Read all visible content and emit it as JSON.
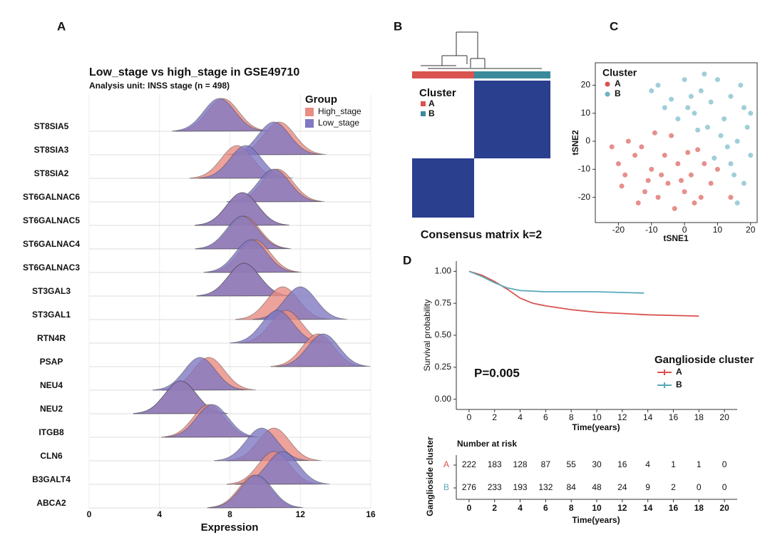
{
  "chart_data": [
    {
      "type": "ridgeline",
      "panel": "A",
      "title": "Low_stage vs high_stage in GSE49710",
      "subtitle": "Analysis unit: INSS stage (n = 498)",
      "x_label": "Expression",
      "legend_title": "Group",
      "xlim": [
        0,
        16
      ],
      "xticks": [
        0,
        4,
        8,
        12,
        16
      ],
      "grid": true,
      "categories": [
        "ST8SIA5",
        "ST8SIA3",
        "ST8SIA2",
        "ST6GALNAC6",
        "ST6GALNAC5",
        "ST6GALNAC4",
        "ST6GALNAC3",
        "ST3GAL3",
        "ST3GAL1",
        "RTN4R",
        "PSAP",
        "NEU4",
        "NEU2",
        "ITGB8",
        "CLN6",
        "B3GALT4",
        "ABCA2"
      ],
      "series": [
        {
          "name": "High_stage",
          "color": "#e98c82",
          "values": [
            7.6,
            10.8,
            8.4,
            10.7,
            8.7,
            8.8,
            9.4,
            8.8,
            11.0,
            11.2,
            13.0,
            6.8,
            5.2,
            6.8,
            10.5,
            10.5,
            9.4
          ]
        },
        {
          "name": "Low_stage",
          "color": "#7f78c2",
          "values": [
            7.4,
            10.5,
            8.9,
            10.5,
            8.7,
            8.7,
            9.2,
            8.8,
            12.0,
            10.7,
            13.3,
            6.3,
            5.2,
            7.0,
            9.8,
            11.0,
            9.5
          ]
        }
      ]
    },
    {
      "type": "heatmap",
      "panel": "B",
      "title": "Consensus matrix k=2",
      "legend_title": "Cluster",
      "values": [
        [
          0,
          1
        ],
        [
          1,
          0
        ]
      ],
      "low_color": "#ffffff",
      "high_color": "#2b3f8f",
      "clusters": [
        {
          "name": "A",
          "color": "#d9534f"
        },
        {
          "name": "B",
          "color": "#3a8a9c"
        }
      ]
    },
    {
      "type": "scatter",
      "panel": "C",
      "x_label": "tSNE1",
      "y_label": "tSNE2",
      "legend_title": "Cluster",
      "xlim": [
        -27,
        22
      ],
      "ylim": [
        -29,
        28
      ],
      "xticks": [
        -20,
        -10,
        0,
        10,
        20
      ],
      "yticks": [
        -20,
        -10,
        0,
        10,
        20
      ],
      "series": [
        {
          "name": "A",
          "color": "#d9534f",
          "x": [
            -22,
            -20,
            -18,
            -15,
            -12,
            -10,
            -8,
            -6,
            -5,
            -3,
            -2,
            0,
            2,
            4,
            5,
            -14,
            -17,
            -9,
            -4,
            1,
            6,
            8,
            -11,
            -19,
            -7,
            3,
            -13,
            10,
            14,
            -1
          ],
          "values": [
            -2,
            -8,
            -12,
            -5,
            -18,
            -10,
            -20,
            -5,
            -15,
            -24,
            -8,
            -18,
            -12,
            -3,
            -20,
            -22,
            0,
            3,
            2,
            -4,
            -8,
            -15,
            -14,
            -16,
            -12,
            -22,
            -2,
            -10,
            -20,
            -14
          ]
        },
        {
          "name": "B",
          "color": "#6db3c4",
          "x": [
            -8,
            -4,
            0,
            3,
            5,
            7,
            8,
            10,
            12,
            14,
            16,
            18,
            20,
            19,
            15,
            13,
            9,
            11,
            6,
            2,
            -2,
            -6,
            17,
            20,
            18,
            4,
            -10,
            1,
            14,
            16
          ],
          "values": [
            20,
            15,
            22,
            10,
            18,
            5,
            14,
            22,
            8,
            16,
            0,
            12,
            -5,
            5,
            -12,
            -2,
            -6,
            2,
            24,
            16,
            8,
            12,
            20,
            10,
            -15,
            4,
            18,
            12,
            -8,
            -22
          ]
        }
      ]
    },
    {
      "type": "line",
      "panel": "D",
      "x_label": "Time(years)",
      "y_label": "Survival probability",
      "annotation": "P=0.005",
      "legend_title": "Ganglioside cluster",
      "xlim": [
        -1,
        21
      ],
      "ylim": [
        -0.08,
        1.08
      ],
      "xticks": [
        0,
        2,
        4,
        6,
        8,
        10,
        12,
        14,
        16,
        18,
        20
      ],
      "yticks": [
        {
          "value": 0,
          "label": "0.00"
        },
        {
          "value": 0.25,
          "label": "0.25"
        },
        {
          "value": 0.5,
          "label": "0.50"
        },
        {
          "value": 0.75,
          "label": "0.75"
        },
        {
          "value": 1,
          "label": "1.00"
        }
      ],
      "series": [
        {
          "name": "A",
          "color": "#d9534f",
          "x": [
            0,
            1,
            2,
            3,
            4,
            5,
            6,
            8,
            10,
            12,
            14,
            18
          ],
          "values": [
            1,
            0.97,
            0.92,
            0.86,
            0.79,
            0.75,
            0.73,
            0.7,
            0.68,
            0.67,
            0.66,
            0.65
          ]
        },
        {
          "name": "B",
          "color": "#5aa9bb",
          "x": [
            0,
            1,
            2,
            3,
            4,
            6,
            10,
            13.7
          ],
          "values": [
            1,
            0.96,
            0.91,
            0.87,
            0.85,
            0.84,
            0.84,
            0.83
          ]
        }
      ]
    },
    {
      "type": "table",
      "title": "Number at risk",
      "x_label": "Time(years)",
      "y_label": "Ganglioside cluster",
      "xlim": [
        -1,
        21
      ],
      "xticks": [
        0,
        2,
        4,
        6,
        8,
        10,
        12,
        14,
        16,
        18,
        20
      ],
      "series": [
        {
          "name": "A",
          "color": "#d9534f",
          "values": [
            222,
            183,
            128,
            87,
            55,
            30,
            16,
            4,
            1,
            1,
            0
          ]
        },
        {
          "name": "B",
          "color": "#5aa9bb",
          "values": [
            276,
            233,
            193,
            132,
            84,
            48,
            24,
            9,
            2,
            0,
            0
          ]
        }
      ]
    }
  ]
}
